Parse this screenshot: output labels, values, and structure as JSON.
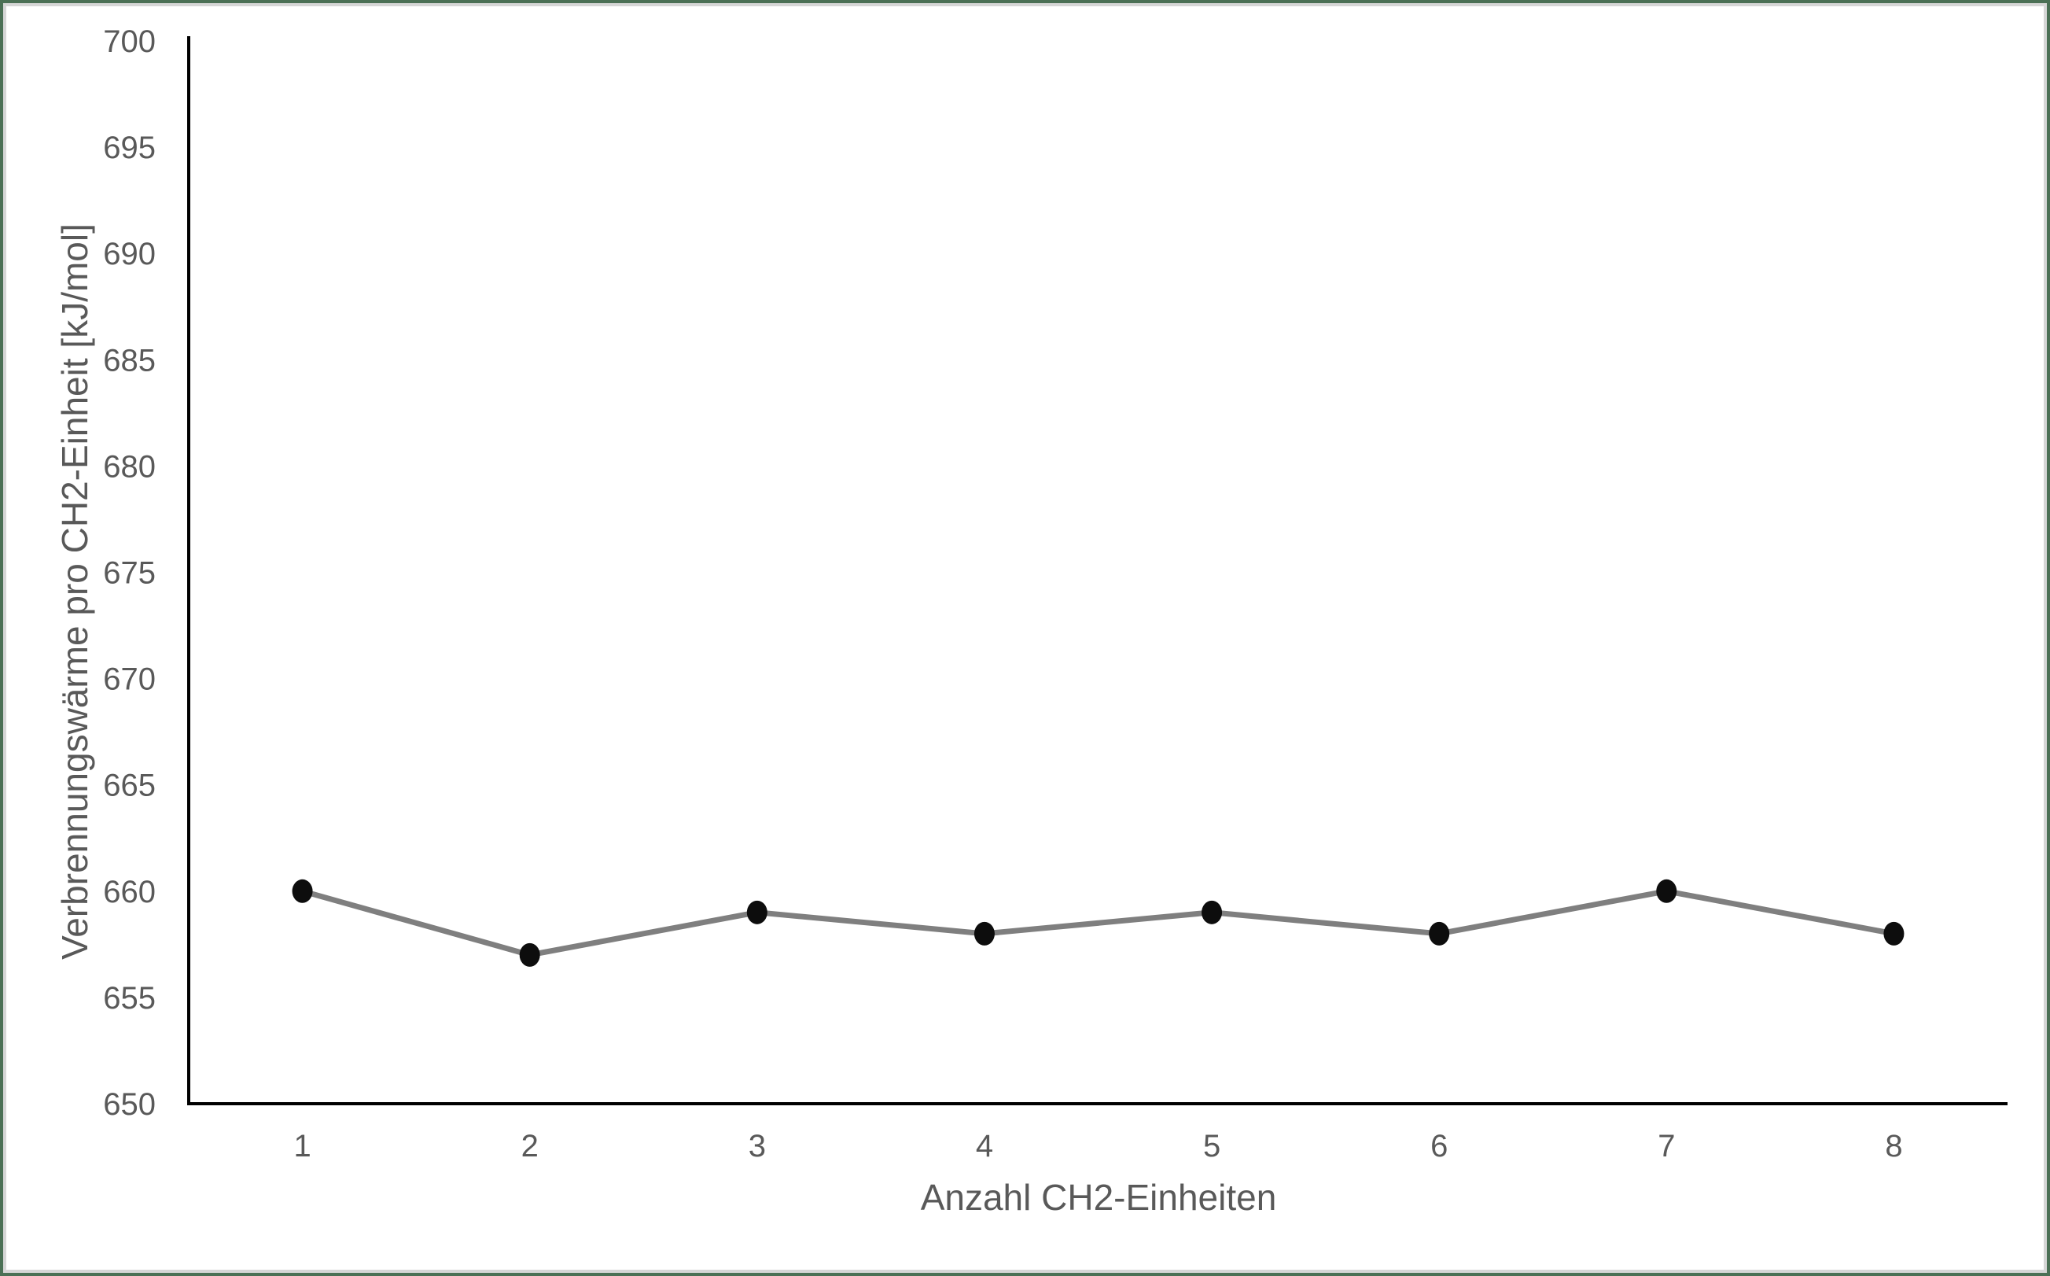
{
  "window": {
    "background": "#ffffff",
    "outer_border_color": "#4b7055",
    "inner_border_color": "#d6d6d6"
  },
  "chart_data": {
    "type": "line",
    "title": "",
    "xlabel": "Anzahl CH2-Einheiten",
    "ylabel": "Verbrennungswärme pro CH2-Einheit [kJ/mol]",
    "categories": [
      1,
      2,
      3,
      4,
      5,
      6,
      7,
      8
    ],
    "values": [
      660,
      657,
      659,
      658,
      659,
      658,
      660,
      658
    ],
    "ylim": [
      650,
      700
    ],
    "yticks": [
      700,
      695,
      690,
      685,
      680,
      675,
      670,
      665,
      660,
      655,
      650
    ],
    "xticks": [
      1,
      2,
      3,
      4,
      5,
      6,
      7,
      8
    ],
    "grid": false,
    "legend_position": "none",
    "line_color": "#7f7f7f",
    "marker_color": "#0d0d0d",
    "axis_color": "#000000",
    "text_color": "#595959"
  }
}
